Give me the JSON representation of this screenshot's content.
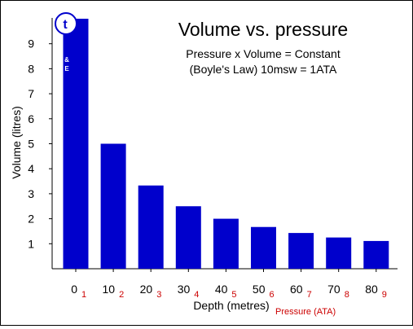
{
  "chart_data": {
    "type": "bar",
    "title": "Volume vs. pressure",
    "subtitle_line1": "Pressure x Volume = Constant",
    "subtitle_line2": "(Boyle's Law) 10msw = 1ATA",
    "xlabel": "Depth (metres)",
    "xlabel_secondary": "Pressure (ATA)",
    "ylabel": "Volume (litres)",
    "ylim": [
      0,
      10
    ],
    "y_ticks": [
      "1",
      "2",
      "3",
      "4",
      "5",
      "6",
      "7",
      "8",
      "9"
    ],
    "categories": [
      "0",
      "10",
      "20",
      "30",
      "40",
      "50",
      "60",
      "70",
      "80"
    ],
    "pressures": [
      "1",
      "2",
      "3",
      "4",
      "5",
      "6",
      "7",
      "8",
      "9"
    ],
    "values": [
      10,
      5,
      3.33,
      2.5,
      2,
      1.67,
      1.43,
      1.25,
      1.11
    ],
    "grid": false,
    "legend": "none",
    "colors": {
      "bar": "#0000cc",
      "pressure_text": "#cc0000",
      "axis": "#000000"
    },
    "logo": {
      "text_top": "t",
      "text_bottom": "& E",
      "color": "#0000cc"
    }
  }
}
